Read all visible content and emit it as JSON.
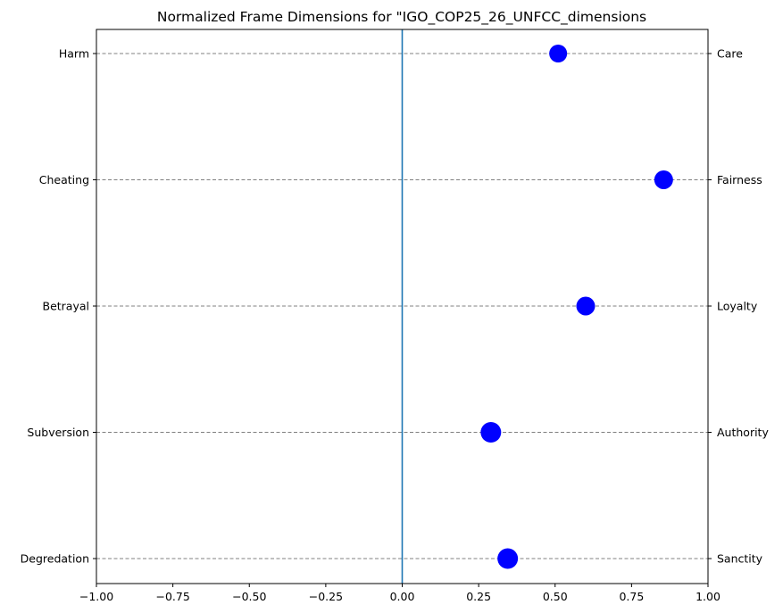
{
  "chart_data": {
    "type": "scatter",
    "title": "Normalized Frame Dimensions for \"IGO_COP25_26_UNFCC_dimensions",
    "xlabel": "",
    "ylabel": "",
    "xlim": [
      -1.0,
      1.0
    ],
    "x_ticks": [
      "−1.00",
      "−0.75",
      "−0.50",
      "−0.25",
      "0.00",
      "0.25",
      "0.50",
      "0.75",
      "1.00"
    ],
    "x_tick_values": [
      -1.0,
      -0.75,
      -0.5,
      -0.25,
      0.0,
      0.25,
      0.5,
      0.75,
      1.0
    ],
    "left_labels": [
      "Harm",
      "Cheating",
      "Betrayal",
      "Subversion",
      "Degredation"
    ],
    "right_labels": [
      "Care",
      "Fairness",
      "Loyalty",
      "Authority",
      "Sanctity"
    ],
    "values": [
      0.51,
      0.855,
      0.6,
      0.29,
      0.345
    ],
    "marker_sizes": [
      1.0,
      1.05,
      1.05,
      1.15,
      1.15
    ],
    "vline_x": 0.0,
    "grid": "horizontal dashed",
    "marker_color": "#0000ff",
    "vline_color": "#1f77b4",
    "grid_color": "#808080"
  }
}
